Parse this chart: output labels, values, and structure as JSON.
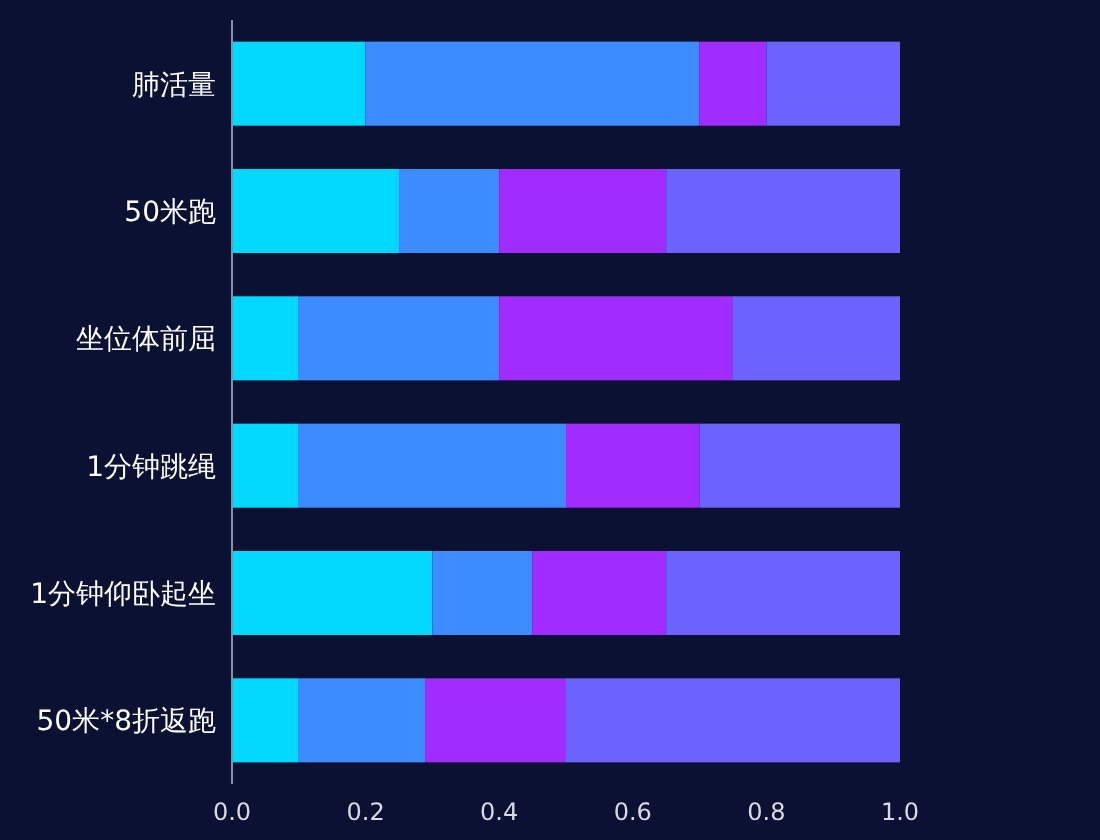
{
  "chart_data": {
    "type": "bar",
    "orientation": "horizontal",
    "stacked": true,
    "categories": [
      "肺活量",
      "50米跑",
      "坐位体前屈",
      "1分钟跳绳",
      "1分钟仰卧起坐",
      "50米*8折返跑"
    ],
    "series": [
      {
        "color": "#00d8ff",
        "values": [
          0.2,
          0.25,
          0.1,
          0.1,
          0.3,
          0.1
        ]
      },
      {
        "color": "#3d8cff",
        "values": [
          0.5,
          0.15,
          0.3,
          0.4,
          0.15,
          0.19
        ]
      },
      {
        "color": "#a02cff",
        "values": [
          0.1,
          0.25,
          0.35,
          0.2,
          0.2,
          0.21
        ]
      },
      {
        "color": "#6c63ff",
        "values": [
          0.2,
          0.35,
          0.25,
          0.3,
          0.35,
          0.5
        ]
      }
    ],
    "xlim": [
      0,
      1
    ],
    "xticks": [
      {
        "value": 0,
        "label": "0.0"
      },
      0.2,
      0.4,
      0.6,
      0.8,
      {
        "value": 1,
        "label": "1.0"
      }
    ],
    "grid": false
  }
}
